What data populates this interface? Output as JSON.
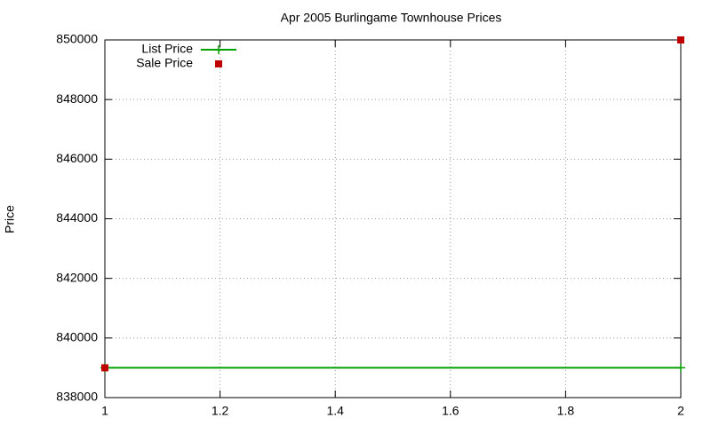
{
  "chart_data": {
    "type": "line",
    "title": "Apr 2005 Burlingame Townhouse Prices",
    "y_label": "Price",
    "xlim": [
      1,
      2
    ],
    "xticks": [
      1,
      1.2,
      1.4,
      1.6,
      1.8,
      2
    ],
    "ylim": [
      838000,
      850000
    ],
    "yticks": [
      838000,
      840000,
      842000,
      844000,
      846000,
      848000,
      850000
    ],
    "grid": true,
    "legend": "top-left",
    "series": [
      {
        "name": "List Price",
        "color": "#00a000",
        "style": "linespoints",
        "x": [
          1,
          2
        ],
        "values": [
          839000,
          839000
        ]
      },
      {
        "name": "Sale Price",
        "color": "#c00000",
        "style": "points",
        "x": [
          1,
          2
        ],
        "values": [
          839000,
          850000
        ]
      }
    ]
  }
}
